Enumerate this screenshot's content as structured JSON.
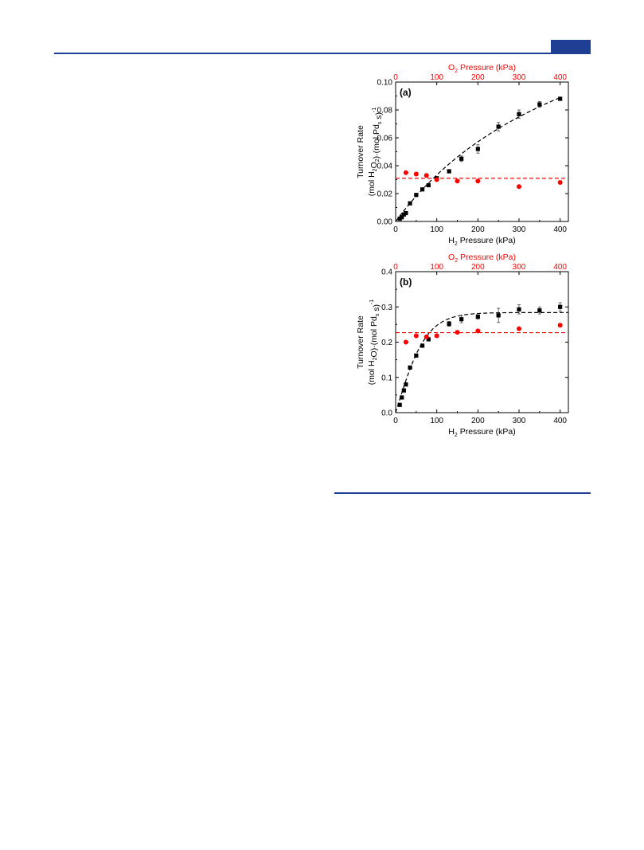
{
  "page": {
    "accent_color": "#1f3f95"
  },
  "chart_data": [
    {
      "type": "scatter",
      "panel_label": "(a)",
      "xlabel": {
        "pre": "H",
        "sub": "2",
        "post": " Pressure (kPa)"
      },
      "x2label": {
        "pre": "O",
        "sub": "2",
        "post": " Pressure (kPa)"
      },
      "ylabel_line1": "Turnover Rate",
      "ylabel_line2": {
        "parts": [
          {
            "t": "(mol H"
          },
          {
            "t": "2",
            "sub": true
          },
          {
            "t": "O"
          },
          {
            "t": "2",
            "sub": true
          },
          {
            "t": ")·(mol Pd"
          },
          {
            "t": "s",
            "sub": true
          },
          {
            "t": " s)"
          },
          {
            "t": "-1",
            "sup": true
          }
        ]
      },
      "xlim": [
        0,
        420
      ],
      "ylim": [
        0,
        0.1
      ],
      "xticks": [
        0,
        100,
        200,
        300,
        400
      ],
      "x2ticks": [
        0,
        100,
        200,
        300,
        400
      ],
      "yticks": [
        0.0,
        0.02,
        0.04,
        0.06,
        0.08,
        0.1
      ],
      "ytick_labels": [
        "0.00",
        "0.02",
        "0.04",
        "0.06",
        "0.08",
        "0.10"
      ],
      "series": [
        {
          "color": "#000000",
          "marker": "square",
          "axis": "bottom",
          "x": [
            10,
            15,
            20,
            25,
            35,
            50,
            65,
            80,
            100,
            130,
            160,
            200,
            250,
            300,
            350,
            400
          ],
          "y": [
            0.002,
            0.003,
            0.005,
            0.006,
            0.013,
            0.019,
            0.023,
            0.026,
            0.031,
            0.036,
            0.045,
            0.052,
            0.068,
            0.077,
            0.084,
            0.088
          ],
          "yerr": [
            0,
            0,
            0,
            0,
            0,
            0,
            0,
            0,
            0,
            0.001,
            0.002,
            0.003,
            0.003,
            0.003,
            0.002,
            0.001
          ]
        },
        {
          "color": "#ff0000",
          "marker": "circle",
          "axis": "top",
          "x": [
            25,
            50,
            75,
            100,
            150,
            200,
            300,
            400
          ],
          "y": [
            0.035,
            0.034,
            0.033,
            0.03,
            0.029,
            0.029,
            0.025,
            0.028
          ]
        }
      ],
      "fits": [
        {
          "color": "#000000",
          "style": "dashed",
          "kind": "langmuir",
          "a": 0.2,
          "b": 0.002,
          "x_max": 400
        },
        {
          "color": "#ff0000",
          "style": "dashed",
          "kind": "constant",
          "y": 0.031,
          "x_max": 430
        }
      ]
    },
    {
      "type": "scatter",
      "panel_label": "(b)",
      "xlabel": {
        "pre": "H",
        "sub": "2",
        "post": " Pressure (kPa)"
      },
      "x2label": {
        "pre": "O",
        "sub": "2",
        "post": " Pressure (kPa)"
      },
      "ylabel_line1": "Turnover Rate",
      "ylabel_line2": {
        "parts": [
          {
            "t": "(mol H"
          },
          {
            "t": "2",
            "sub": true
          },
          {
            "t": "O)·(mol Pd"
          },
          {
            "t": "s",
            "sub": true
          },
          {
            "t": " s)"
          },
          {
            "t": "-1",
            "sup": true
          }
        ]
      },
      "xlim": [
        0,
        420
      ],
      "ylim": [
        0,
        0.4
      ],
      "xticks": [
        0,
        100,
        200,
        300,
        400
      ],
      "x2ticks": [
        0,
        100,
        200,
        300,
        400
      ],
      "yticks": [
        0.0,
        0.1,
        0.2,
        0.3,
        0.4
      ],
      "ytick_labels": [
        "0.0",
        "0.1",
        "0.2",
        "0.3",
        "0.4"
      ],
      "series": [
        {
          "color": "#000000",
          "marker": "square",
          "axis": "bottom",
          "x": [
            10,
            15,
            20,
            25,
            35,
            50,
            65,
            80,
            130,
            160,
            200,
            250,
            300,
            350,
            400
          ],
          "y": [
            0.022,
            0.043,
            0.063,
            0.08,
            0.128,
            0.162,
            0.19,
            0.208,
            0.252,
            0.265,
            0.272,
            0.276,
            0.293,
            0.29,
            0.3
          ],
          "yerr": [
            0,
            0,
            0,
            0,
            0,
            0,
            0,
            0,
            0.007,
            0.01,
            0.006,
            0.02,
            0.013,
            0.01,
            0.012
          ]
        },
        {
          "color": "#ff0000",
          "marker": "circle",
          "axis": "top",
          "x": [
            25,
            50,
            75,
            100,
            150,
            200,
            300,
            400
          ],
          "y": [
            0.2,
            0.218,
            0.215,
            0.218,
            0.228,
            0.232,
            0.238,
            0.248
          ]
        }
      ],
      "fits": [
        {
          "color": "#000000",
          "style": "dashed",
          "kind": "tanh",
          "ymax": 0.284,
          "scale": 75,
          "x_max": 420
        },
        {
          "color": "#ff0000",
          "style": "dashed",
          "kind": "constant",
          "y": 0.227,
          "x_max": 420
        }
      ]
    }
  ]
}
